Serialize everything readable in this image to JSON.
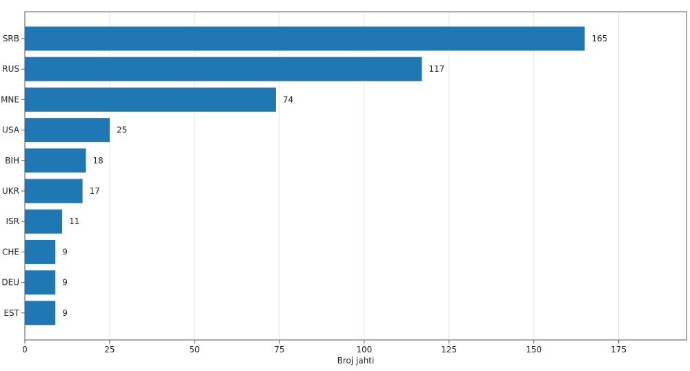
{
  "chart_data": {
    "type": "bar",
    "orientation": "horizontal",
    "categories": [
      "SRB",
      "RUS",
      "MNE",
      "USA",
      "BIH",
      "UKR",
      "ISR",
      "CHE",
      "DEU",
      "EST"
    ],
    "values": [
      165,
      117,
      74,
      25,
      18,
      17,
      11,
      9,
      9,
      9
    ],
    "xlabel": "Broj jahti",
    "ylabel": "",
    "xlim": [
      0,
      195
    ],
    "xticks": [
      0,
      25,
      50,
      75,
      100,
      125,
      150,
      175
    ],
    "grid": "vertical",
    "legend": "none",
    "bar_color": "#1f77b4"
  }
}
